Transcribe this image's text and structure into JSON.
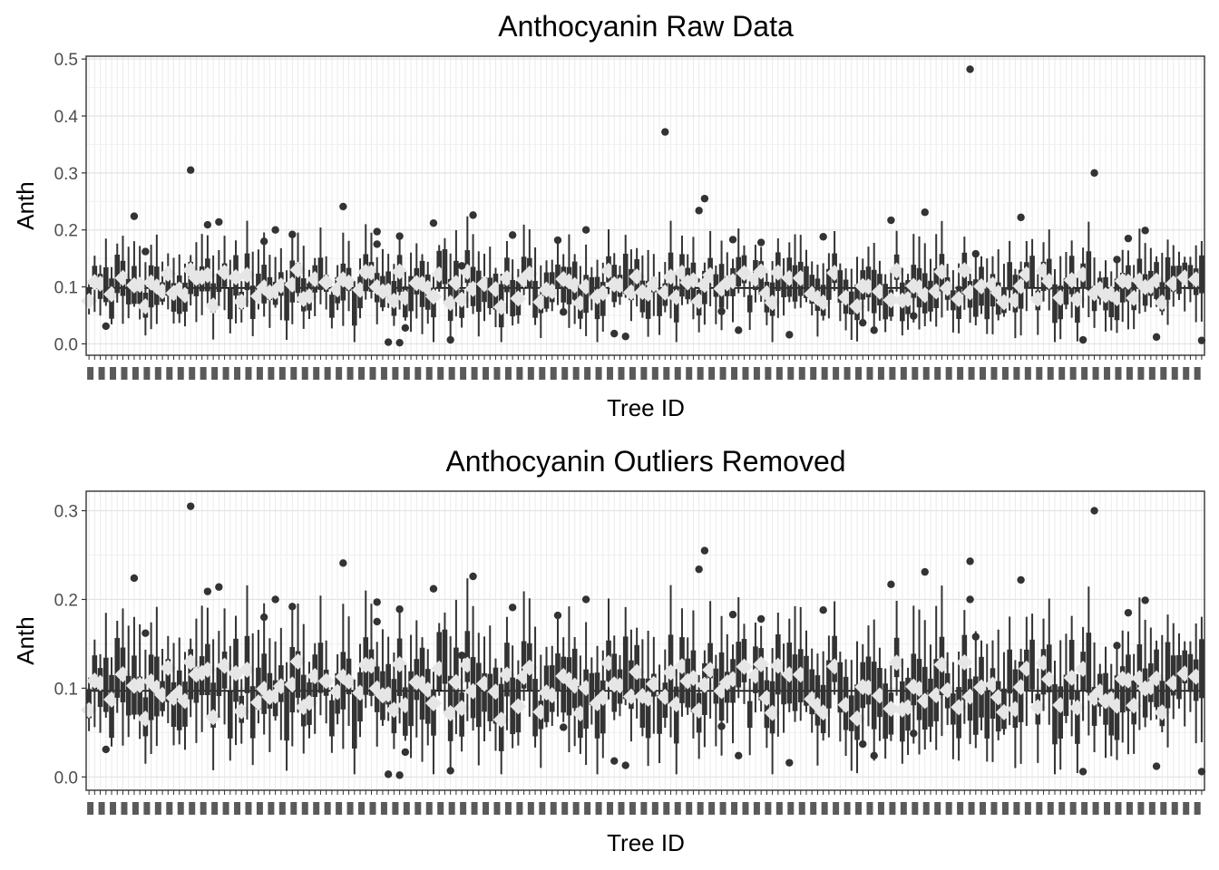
{
  "chart_data": [
    {
      "type": "boxplot",
      "title": "Anthocyanin Raw Data",
      "xlabel": "Tree ID",
      "ylabel": "Anth",
      "ylim": [
        -0.02,
        0.505
      ],
      "yticks": [
        0.0,
        0.1,
        0.2,
        0.3,
        0.4,
        0.5
      ],
      "ytick_labels": [
        "0.0",
        "0.1",
        "0.2",
        "0.3",
        "0.4",
        "0.5"
      ],
      "category_count": 198,
      "xtick_labels_legible": false,
      "reference_line": 0.098,
      "grid": true,
      "outliers": [
        [
          3,
          0.031
        ],
        [
          8,
          0.224
        ],
        [
          10,
          0.162
        ],
        [
          18,
          0.305
        ],
        [
          21,
          0.209
        ],
        [
          23,
          0.214
        ],
        [
          31,
          0.18
        ],
        [
          33,
          0.2
        ],
        [
          36,
          0.192
        ],
        [
          45,
          0.241
        ],
        [
          51,
          0.197
        ],
        [
          51,
          0.175
        ],
        [
          53,
          0.003
        ],
        [
          55,
          0.189
        ],
        [
          55,
          0.002
        ],
        [
          56,
          0.028
        ],
        [
          61,
          0.212
        ],
        [
          64,
          0.007
        ],
        [
          66,
          0.137
        ],
        [
          68,
          0.226
        ],
        [
          75,
          0.191
        ],
        [
          83,
          0.182
        ],
        [
          84,
          0.056
        ],
        [
          88,
          0.2
        ],
        [
          93,
          0.018
        ],
        [
          95,
          0.013
        ],
        [
          102,
          0.372
        ],
        [
          108,
          0.234
        ],
        [
          109,
          0.255
        ],
        [
          112,
          0.057
        ],
        [
          114,
          0.183
        ],
        [
          115,
          0.024
        ],
        [
          119,
          0.178
        ],
        [
          124,
          0.016
        ],
        [
          130,
          0.188
        ],
        [
          137,
          0.037
        ],
        [
          139,
          0.024
        ],
        [
          142,
          0.217
        ],
        [
          146,
          0.049
        ],
        [
          148,
          0.231
        ],
        [
          156,
          0.482
        ],
        [
          157,
          0.158
        ],
        [
          165,
          0.222
        ],
        [
          176,
          0.007
        ],
        [
          178,
          0.3
        ],
        [
          182,
          0.148
        ],
        [
          184,
          0.185
        ],
        [
          187,
          0.199
        ],
        [
          189,
          0.012
        ],
        [
          204,
          0.006
        ]
      ],
      "series_color": "#333333",
      "mean_marker_color": "#e6e6e6"
    },
    {
      "type": "boxplot",
      "title": "Anthocyanin Outliers Removed",
      "xlabel": "Tree ID",
      "ylabel": "Anth",
      "ylim": [
        -0.015,
        0.322
      ],
      "yticks": [
        0.0,
        0.1,
        0.2,
        0.3
      ],
      "ytick_labels": [
        "0.0",
        "0.1",
        "0.2",
        "0.3"
      ],
      "category_count": 198,
      "xtick_labels_legible": false,
      "reference_line": 0.097,
      "grid": true,
      "outliers": [
        [
          3,
          0.031
        ],
        [
          8,
          0.224
        ],
        [
          10,
          0.162
        ],
        [
          18,
          0.305
        ],
        [
          21,
          0.209
        ],
        [
          23,
          0.214
        ],
        [
          31,
          0.18
        ],
        [
          33,
          0.2
        ],
        [
          36,
          0.192
        ],
        [
          45,
          0.241
        ],
        [
          51,
          0.197
        ],
        [
          51,
          0.175
        ],
        [
          53,
          0.003
        ],
        [
          55,
          0.189
        ],
        [
          55,
          0.002
        ],
        [
          56,
          0.028
        ],
        [
          61,
          0.212
        ],
        [
          64,
          0.007
        ],
        [
          66,
          0.137
        ],
        [
          68,
          0.226
        ],
        [
          75,
          0.191
        ],
        [
          83,
          0.182
        ],
        [
          84,
          0.056
        ],
        [
          88,
          0.2
        ],
        [
          93,
          0.018
        ],
        [
          95,
          0.013
        ],
        [
          108,
          0.234
        ],
        [
          109,
          0.255
        ],
        [
          112,
          0.057
        ],
        [
          114,
          0.183
        ],
        [
          115,
          0.024
        ],
        [
          119,
          0.178
        ],
        [
          124,
          0.016
        ],
        [
          130,
          0.188
        ],
        [
          137,
          0.037
        ],
        [
          139,
          0.024
        ],
        [
          142,
          0.217
        ],
        [
          146,
          0.049
        ],
        [
          148,
          0.231
        ],
        [
          156,
          0.243
        ],
        [
          156,
          0.2
        ],
        [
          157,
          0.158
        ],
        [
          165,
          0.222
        ],
        [
          176,
          0.006
        ],
        [
          178,
          0.3
        ],
        [
          182,
          0.148
        ],
        [
          184,
          0.185
        ],
        [
          187,
          0.199
        ],
        [
          189,
          0.012
        ],
        [
          204,
          0.006
        ]
      ],
      "series_color": "#333333",
      "mean_marker_color": "#e6e6e6"
    }
  ]
}
